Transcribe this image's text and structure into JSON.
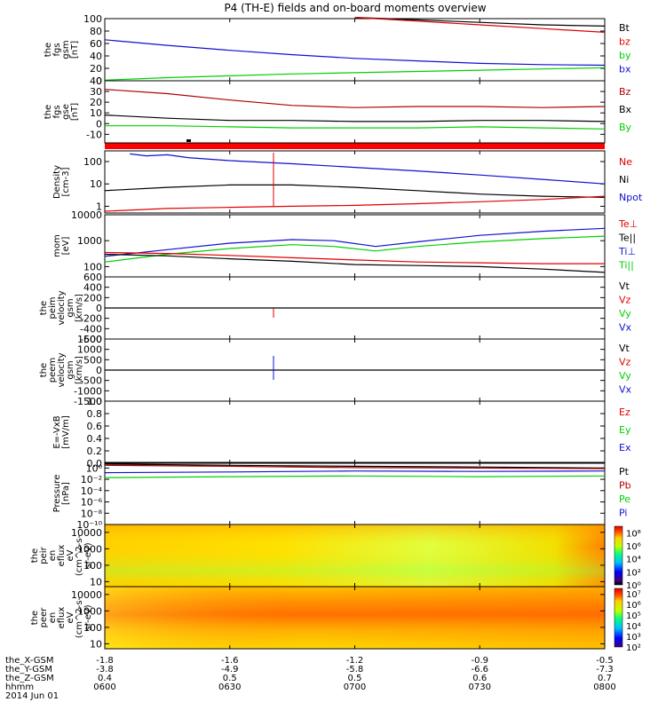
{
  "title": "P4 (TH-E) fields and on-board moments overview",
  "date_label": "2014 Jun 01",
  "colors": {
    "black": "#000000",
    "red": "#e00000",
    "green": "#00d000",
    "blue": "#1010d0",
    "dark_red": "#b00000"
  },
  "time_axis": {
    "rows": [
      {
        "label": "the_X-GSM",
        "values": [
          "-1.8",
          "-1.6",
          "-1.2",
          "-0.9",
          "-0.5"
        ]
      },
      {
        "label": "the_Y-GSM",
        "values": [
          "-3.8",
          "-4.9",
          "-5.8",
          "-6.6",
          "-7.3"
        ]
      },
      {
        "label": "the_Z-GSM",
        "values": [
          "0.4",
          "0.5",
          "0.5",
          "0.6",
          "0.7"
        ]
      },
      {
        "label": "hhmm",
        "values": [
          "0600",
          "0630",
          "0700",
          "0730",
          "0800"
        ]
      }
    ],
    "ticks_minutes": [
      0,
      30,
      60,
      90,
      120
    ]
  },
  "chart_data": [
    {
      "type": "line",
      "panel": "fgs_gsm",
      "ylabel": [
        "the",
        "fgs",
        "gsm",
        "[nT]"
      ],
      "ylim": [
        0,
        100
      ],
      "yticks": [
        "100",
        "80",
        "60",
        "40",
        "20",
        "0"
      ],
      "legend": [
        {
          "label": "Bt",
          "color": "black"
        },
        {
          "label": "bz",
          "color": "red"
        },
        {
          "label": "by",
          "color": "green"
        },
        {
          "label": "bx",
          "color": "blue"
        }
      ],
      "x_minutes": [
        0,
        30,
        60,
        90,
        120
      ],
      "series": [
        {
          "name": "Bt",
          "color": "black",
          "x": [
            60,
            75,
            90,
            105,
            120
          ],
          "values": [
            102,
            98,
            94,
            90,
            88
          ]
        },
        {
          "name": "bz",
          "color": "red",
          "x": [
            60,
            75,
            90,
            105,
            120
          ],
          "values": [
            102,
            96,
            90,
            84,
            78
          ]
        },
        {
          "name": "by",
          "color": "green",
          "x": [
            0,
            15,
            30,
            45,
            60,
            75,
            90,
            105,
            120
          ],
          "values": [
            1,
            5,
            8,
            11,
            13,
            15,
            17,
            19,
            21
          ]
        },
        {
          "name": "bx",
          "color": "blue",
          "x": [
            0,
            15,
            30,
            45,
            60,
            75,
            90,
            105,
            120
          ],
          "values": [
            66,
            57,
            49,
            42,
            36,
            32,
            28,
            26,
            25
          ]
        }
      ]
    },
    {
      "type": "line",
      "panel": "fgs_gse",
      "ylabel": [
        "the",
        "fgs",
        "gse",
        "[nT]"
      ],
      "ylim": [
        -18,
        40
      ],
      "yticks": [
        "40",
        "30",
        "20",
        "10",
        "0",
        "-10"
      ],
      "legend": [
        {
          "label": "Bz",
          "color": "dark_red"
        },
        {
          "label": "Bx",
          "color": "black"
        },
        {
          "label": "By",
          "color": "green"
        }
      ],
      "series": [
        {
          "name": "Bz",
          "color": "dark_red",
          "x": [
            0,
            15,
            30,
            45,
            60,
            75,
            90,
            105,
            120
          ],
          "values": [
            32,
            28,
            22,
            17,
            15,
            16,
            16,
            15,
            16
          ]
        },
        {
          "name": "Bx",
          "color": "black",
          "x": [
            0,
            15,
            30,
            45,
            60,
            75,
            90,
            105,
            120
          ],
          "values": [
            8,
            5,
            3,
            3,
            2,
            2,
            3,
            3,
            2
          ]
        },
        {
          "name": "By",
          "color": "green",
          "x": [
            0,
            15,
            30,
            45,
            60,
            75,
            90,
            105,
            120
          ],
          "values": [
            -2,
            -2,
            -3,
            -4,
            -4,
            -4,
            -3,
            -4,
            -5
          ]
        }
      ]
    },
    {
      "type": "line",
      "panel": "density",
      "ylabel": [
        "Density",
        "[cm-3]"
      ],
      "yscale": "log",
      "ylim": [
        0.5,
        300
      ],
      "yticks": [
        "100",
        "10",
        "1"
      ],
      "legend": [
        {
          "label": "Ne",
          "color": "red"
        },
        {
          "label": "Ni",
          "color": "black"
        },
        {
          "label": "Npot",
          "color": "blue"
        }
      ],
      "series": [
        {
          "name": "Npot",
          "color": "blue",
          "x": [
            6,
            10,
            15,
            20,
            30,
            45,
            60,
            75,
            90,
            105,
            120
          ],
          "values": [
            220,
            180,
            200,
            150,
            110,
            80,
            55,
            38,
            25,
            16,
            10
          ]
        },
        {
          "name": "Ni",
          "color": "black",
          "x": [
            0,
            15,
            30,
            45,
            60,
            75,
            90,
            105,
            120
          ],
          "values": [
            5,
            7,
            9,
            9,
            7,
            5,
            3.5,
            2.8,
            2.5
          ]
        },
        {
          "name": "Ne",
          "color": "red",
          "x": [
            0,
            15,
            30,
            45,
            60,
            75,
            90,
            105,
            120
          ],
          "values": [
            0.6,
            0.8,
            0.9,
            1.0,
            1.1,
            1.3,
            1.6,
            2.0,
            2.8
          ]
        }
      ]
    },
    {
      "type": "line",
      "panel": "temperature",
      "ylabel": [
        "mom",
        "[eV]"
      ],
      "yscale": "log",
      "ylim": [
        40,
        10000
      ],
      "yticks": [
        "10000",
        "1000",
        "100"
      ],
      "legend": [
        {
          "label": "Te⊥",
          "color": "red"
        },
        {
          "label": "Te||",
          "color": "black"
        },
        {
          "label": "Ti⊥",
          "color": "blue"
        },
        {
          "label": "Ti||",
          "color": "green"
        }
      ],
      "series": [
        {
          "name": "Ti⊥",
          "color": "blue",
          "x": [
            0,
            15,
            30,
            45,
            55,
            65,
            75,
            90,
            105,
            120
          ],
          "values": [
            250,
            450,
            800,
            1100,
            1000,
            600,
            900,
            1600,
            2300,
            3000
          ]
        },
        {
          "name": "Ti||",
          "color": "green",
          "x": [
            0,
            15,
            30,
            45,
            55,
            65,
            75,
            90,
            105,
            120
          ],
          "values": [
            150,
            300,
            500,
            700,
            600,
            400,
            600,
            900,
            1200,
            1500
          ]
        },
        {
          "name": "Te||",
          "color": "black",
          "x": [
            0,
            15,
            30,
            45,
            60,
            75,
            90,
            105,
            120
          ],
          "values": [
            300,
            260,
            200,
            160,
            120,
            110,
            100,
            80,
            60
          ]
        },
        {
          "name": "Te⊥",
          "color": "red",
          "x": [
            0,
            15,
            30,
            45,
            60,
            75,
            90,
            105,
            120
          ],
          "values": [
            350,
            320,
            270,
            220,
            180,
            150,
            140,
            130,
            130
          ]
        }
      ]
    },
    {
      "type": "line",
      "panel": "peim_velocity",
      "ylabel": [
        "the",
        "peim",
        "velocity",
        "gsm",
        "[km/s]"
      ],
      "ylim": [
        -600,
        600
      ],
      "yticks": [
        "600",
        "400",
        "200",
        "0",
        "-200",
        "-400",
        "-600"
      ],
      "legend": [
        {
          "label": "Vt",
          "color": "black"
        },
        {
          "label": "Vz",
          "color": "red"
        },
        {
          "label": "Vy",
          "color": "green"
        },
        {
          "label": "Vx",
          "color": "blue"
        }
      ],
      "series": [
        {
          "name": "Vt",
          "color": "black",
          "x": [
            0,
            120
          ],
          "values": [
            0,
            0
          ]
        }
      ]
    },
    {
      "type": "line",
      "panel": "peem_velocity",
      "ylabel": [
        "the",
        "peem",
        "velocity",
        "gsm",
        "[km/s]"
      ],
      "ylim": [
        -1500,
        1500
      ],
      "yticks": [
        "1500",
        "1000",
        "500",
        "0",
        "-500",
        "-1000",
        "-1500"
      ],
      "legend": [
        {
          "label": "Vt",
          "color": "black"
        },
        {
          "label": "Vz",
          "color": "red"
        },
        {
          "label": "Vy",
          "color": "green"
        },
        {
          "label": "Vx",
          "color": "blue"
        }
      ],
      "series": [
        {
          "name": "Vt",
          "color": "black",
          "x": [
            0,
            120
          ],
          "values": [
            0,
            0
          ]
        }
      ]
    },
    {
      "type": "line",
      "panel": "efield",
      "ylabel": [
        "E=-VxB",
        "[mV/m]"
      ],
      "ylim": [
        0,
        1
      ],
      "yticks": [
        "1.0",
        "0.8",
        "0.6",
        "0.4",
        "0.2",
        "0.0"
      ],
      "legend": [
        {
          "label": "Ez",
          "color": "red"
        },
        {
          "label": "Ey",
          "color": "green"
        },
        {
          "label": "Ex",
          "color": "blue"
        }
      ],
      "series": []
    },
    {
      "type": "line",
      "panel": "pressure",
      "ylabel": [
        "Pressure",
        "[nPa]"
      ],
      "yscale": "log",
      "ylim": [
        1e-10,
        10
      ],
      "yticks": [
        "10⁰",
        "10⁻²",
        "10⁻⁴",
        "10⁻⁶",
        "10⁻⁸",
        "10⁻¹⁰"
      ],
      "legend": [
        {
          "label": "Pt",
          "color": "black"
        },
        {
          "label": "Pb",
          "color": "dark_red"
        },
        {
          "label": "Pe",
          "color": "green"
        },
        {
          "label": "Pi",
          "color": "blue"
        }
      ],
      "series": [
        {
          "name": "Pt",
          "color": "black",
          "x": [
            0,
            30,
            60,
            90,
            120
          ],
          "values": [
            5,
            3,
            2,
            1.5,
            1
          ]
        },
        {
          "name": "Pb",
          "color": "dark_red",
          "x": [
            0,
            30,
            60,
            90,
            120
          ],
          "values": [
            3,
            2,
            1.2,
            1,
            0.8
          ]
        },
        {
          "name": "Pi",
          "color": "blue",
          "x": [
            0,
            30,
            60,
            90,
            120
          ],
          "values": [
            0.15,
            0.2,
            0.3,
            0.25,
            0.3
          ]
        },
        {
          "name": "Pe",
          "color": "green",
          "x": [
            0,
            30,
            60,
            90,
            120
          ],
          "values": [
            0.02,
            0.03,
            0.04,
            0.03,
            0.04
          ]
        }
      ]
    },
    {
      "type": "heatmap",
      "panel": "peir_spectrogram",
      "ylabel": [
        "the",
        "peir",
        "en",
        "eflux",
        "eV",
        "(cm^2-s-",
        "sr-eV)"
      ],
      "yscale": "log",
      "ylim": [
        5,
        30000
      ],
      "yticks": [
        "10000",
        "1000",
        "100",
        "10"
      ],
      "colorbar_ticks": [
        "10⁸",
        "10⁶",
        "10⁴",
        "10²",
        "10⁰"
      ],
      "colorbar_range_exp": [
        0,
        9
      ]
    },
    {
      "type": "heatmap",
      "panel": "peer_spectrogram",
      "ylabel": [
        "the",
        "peer",
        "en",
        "eflux",
        "eV",
        "(cm^2-s-",
        "sr-eV)"
      ],
      "yscale": "log",
      "ylim": [
        5,
        30000
      ],
      "yticks": [
        "10000",
        "1000",
        "100",
        "10"
      ],
      "colorbar_ticks": [
        "10⁷",
        "10⁶",
        "10⁵",
        "10⁴",
        "10³",
        "10²"
      ],
      "colorbar_range_exp": [
        2,
        7.5
      ]
    }
  ]
}
